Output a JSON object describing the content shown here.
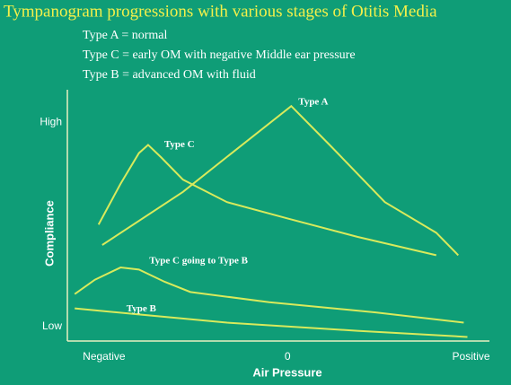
{
  "chart_data": {
    "type": "line",
    "title": "Tympanogram progressions with various stages of Otitis Media",
    "subtitle": [
      "Type A = normal",
      "Type C = early OM with negative Middle ear pressure",
      "Type B = advanced OM with fluid"
    ],
    "x_label": "Air Pressure",
    "y_label": "Compliance",
    "xlim": [
      -1.2,
      1.1
    ],
    "xticks": [
      {
        "value": -1,
        "label": "Negative"
      },
      0,
      {
        "value": 1,
        "label": "Positive"
      }
    ],
    "ylim": [
      -0.07,
      1.16
    ],
    "yticks": [
      {
        "value": 1,
        "label": "High"
      },
      {
        "value": 0,
        "label": "Low"
      }
    ],
    "series": [
      {
        "name": "Type A",
        "color": "#d8ea5c",
        "x": [
          -1.01,
          -0.57,
          -0.29,
          0.02,
          0.24,
          0.53,
          0.81,
          0.93
        ],
        "values": [
          0.4,
          0.66,
          0.86,
          1.08,
          0.88,
          0.61,
          0.46,
          0.35
        ]
      },
      {
        "name": "Type C",
        "color": "#d8ea5c",
        "x": [
          -1.03,
          -0.91,
          -0.81,
          -0.76,
          -0.69,
          -0.57,
          -0.33,
          0,
          0.38,
          0.81
        ],
        "values": [
          0.5,
          0.7,
          0.85,
          0.89,
          0.83,
          0.72,
          0.61,
          0.53,
          0.44,
          0.35
        ]
      },
      {
        "name": "Type C going to Type B",
        "color": "#d8ea5c",
        "x": [
          -1.16,
          -1.05,
          -0.91,
          -0.81,
          -0.67,
          -0.53,
          -0.1,
          0.48,
          0.96
        ],
        "values": [
          0.16,
          0.23,
          0.29,
          0.28,
          0.22,
          0.17,
          0.12,
          0.07,
          0.02
        ]
      },
      {
        "name": "Type B",
        "color": "#d8ea5c",
        "x": [
          -1.16,
          -0.81,
          -0.33,
          0.38,
          0.98
        ],
        "values": [
          0.09,
          0.06,
          0.02,
          -0.02,
          -0.05
        ]
      }
    ]
  }
}
